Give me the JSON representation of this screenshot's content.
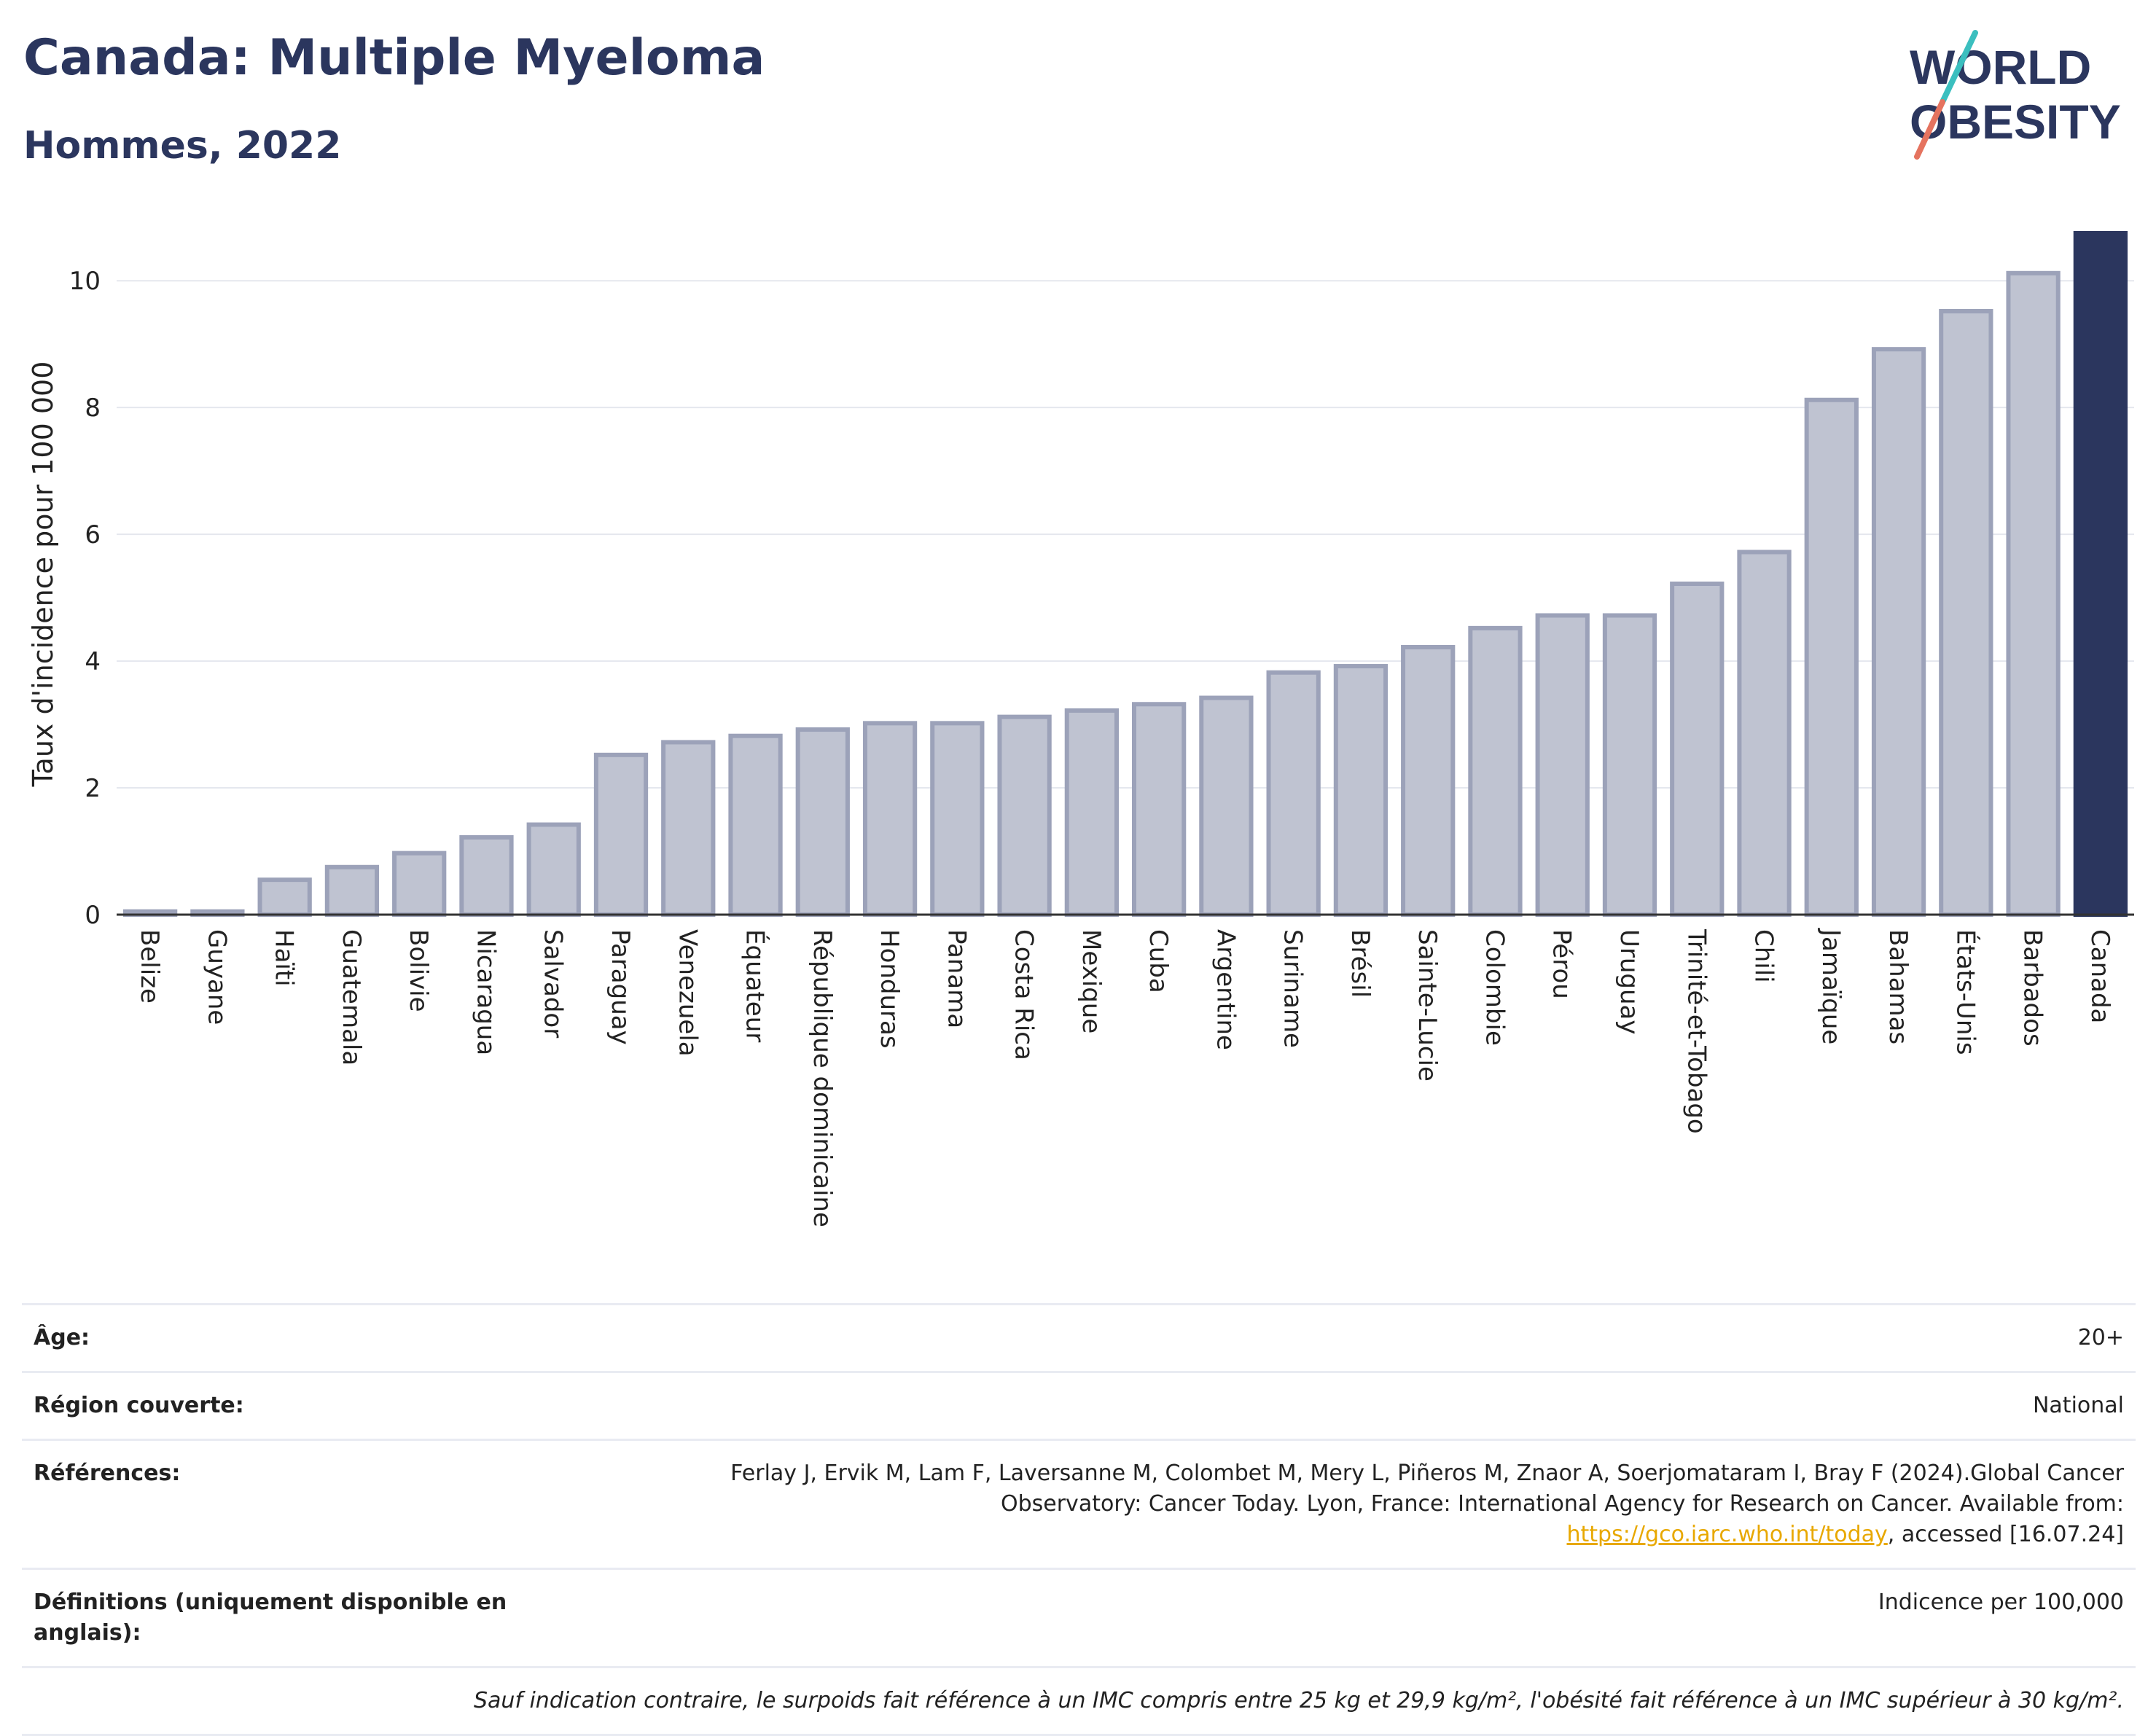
{
  "header": {
    "title": "Canada: Multiple Myeloma",
    "subtitle": "Hommes, 2022"
  },
  "logo": {
    "line1": "WORLD",
    "line2": "OBESITY"
  },
  "chart_data": {
    "type": "bar",
    "title": "Canada: Multiple Myeloma",
    "subtitle": "Hommes, 2022",
    "xlabel": "",
    "ylabel": "Taux d'incidence pour 100 000",
    "ylim": [
      0,
      10.75
    ],
    "yticks": [
      0,
      2,
      4,
      6,
      8,
      10
    ],
    "grid": true,
    "highlight": "Canada",
    "colors": {
      "bar": "#bfc3d1",
      "bar_edge": "#9ca2b9",
      "highlight": "#2b365e"
    },
    "categories": [
      "Belize",
      "Guyane",
      "Haïti",
      "Guatemala",
      "Bolivie",
      "Nicaragua",
      "Salvador",
      "Paraguay",
      "Venezuela",
      "Équateur",
      "République dominicaine",
      "Honduras",
      "Panama",
      "Costa Rica",
      "Mexique",
      "Cuba",
      "Argentine",
      "Suriname",
      "Brésil",
      "Sainte-Lucie",
      "Colombie",
      "Pérou",
      "Uruguay",
      "Trinité-et-Tobago",
      "Chili",
      "Jamaïque",
      "Bahamas",
      "États-Unis",
      "Barbados",
      "Canada"
    ],
    "values": [
      0.05,
      0.05,
      0.55,
      0.75,
      0.97,
      1.22,
      1.42,
      2.52,
      2.72,
      2.82,
      2.92,
      3.02,
      3.02,
      3.12,
      3.22,
      3.32,
      3.42,
      3.82,
      3.92,
      4.22,
      4.52,
      4.72,
      4.72,
      5.22,
      5.72,
      8.12,
      8.92,
      9.52,
      10.12,
      10.75
    ]
  },
  "info": {
    "age_label": "Âge:",
    "age_value": "20+",
    "region_label": "Région couverte:",
    "region_value": "National",
    "refs_label": "Références:",
    "refs_text_1": "Ferlay J, Ervik M, Lam F, Laversanne M, Colombet M, Mery L, Piñeros M, Znaor A, Soerjomataram I, Bray F (2024).Global Cancer Observatory: Cancer Today. Lyon, France: International Agency for Research on Cancer. Available from: ",
    "refs_link": "https://gco.iarc.who.int/today",
    "refs_text_2": ", accessed [16.07.24]",
    "def_label": "Définitions (uniquement disponible en anglais):",
    "def_value": "Indicence per 100,000",
    "note": "Sauf indication contraire, le surpoids fait référence à un IMC compris entre 25 kg et 29,9 kg/m², l'obésité fait référence à un IMC supérieur à 30 kg/m²."
  }
}
